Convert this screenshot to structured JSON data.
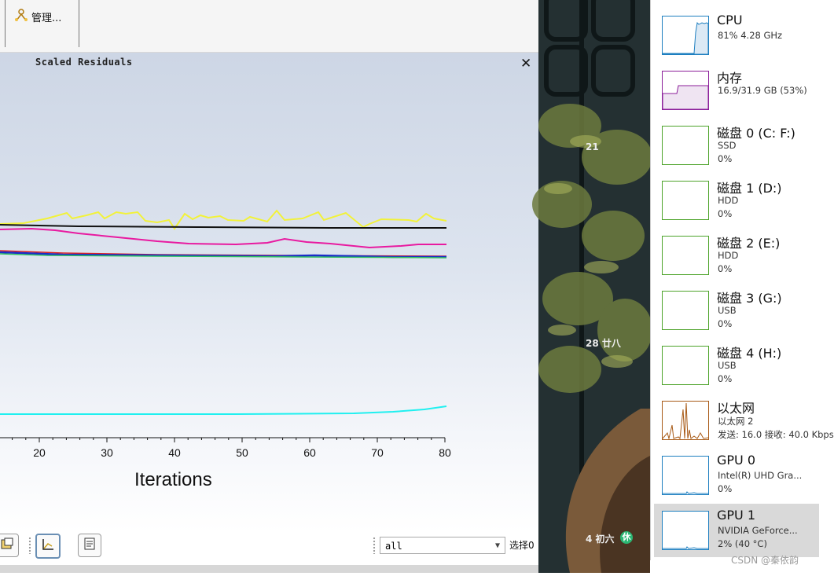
{
  "toolbar": {
    "manage_label": "管理..."
  },
  "plot": {
    "title": "Scaled Residuals",
    "close_label": "✕",
    "xlabel": "Iterations",
    "xticks": [
      "20",
      "30",
      "40",
      "50",
      "60",
      "70",
      "80"
    ]
  },
  "chart_data": {
    "type": "line",
    "title": "Scaled Residuals",
    "xlabel": "Iterations",
    "ylabel": "",
    "xlim": [
      8,
      80
    ],
    "series_colors": {
      "yellow": "#f2f23a",
      "black": "#111111",
      "magenta": "#e81aa0",
      "red": "#e02020",
      "blue": "#1a2cc8",
      "green": "#30c060",
      "cyan": "#20f0f0"
    }
  },
  "bottom_bar": {
    "select_value": "all",
    "select_label": "选择0"
  },
  "wallpaper": {
    "cal_21": "21",
    "cal_28": "28 廿八",
    "cal_4": "4  初六",
    "holiday_badge": "休"
  },
  "perf": {
    "items": [
      {
        "name": "CPU",
        "sub": "81% 4.28 GHz",
        "val": ""
      },
      {
        "name": "内存",
        "sub": "16.9/31.9 GB (53%)",
        "val": ""
      },
      {
        "name": "磁盘 0 (C: F:)",
        "sub": "SSD",
        "val": "0%"
      },
      {
        "name": "磁盘 1 (D:)",
        "sub": "HDD",
        "val": "0%"
      },
      {
        "name": "磁盘 2 (E:)",
        "sub": "HDD",
        "val": "0%"
      },
      {
        "name": "磁盘 3 (G:)",
        "sub": "USB",
        "val": "0%"
      },
      {
        "name": "磁盘 4 (H:)",
        "sub": "USB",
        "val": "0%"
      },
      {
        "name": "以太网",
        "sub": "以太网 2",
        "val": "发送: 16.0  接收: 40.0 Kbps"
      },
      {
        "name": "GPU 0",
        "sub": "Intel(R) UHD Gra...",
        "val": "0%"
      },
      {
        "name": "GPU 1",
        "sub": "NVIDIA GeForce...",
        "val": "2% (40 °C)"
      }
    ],
    "colors": {
      "cpu": "#1e7fc0",
      "mem": "#8b1e9a",
      "disk": "#4da32a",
      "eth": "#a85a16",
      "gpu": "#1e7fc0"
    }
  },
  "watermark": "CSDN @秦依韵"
}
